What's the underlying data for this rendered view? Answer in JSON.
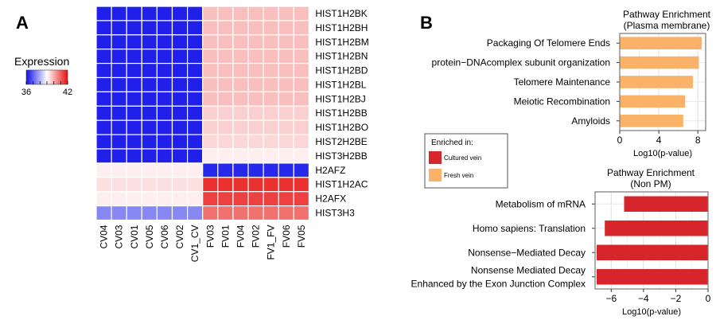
{
  "panels": {
    "a": "A",
    "b": "B"
  },
  "chart_data": [
    {
      "type": "heatmap",
      "rows": [
        "HIST1H2BK",
        "HIST1H2BH",
        "HIST1H2BM",
        "HIST1H2BN",
        "HIST1H2BD",
        "HIST1H2BL",
        "HIST1H2BJ",
        "HIST1H2BB",
        "HIST1H2BO",
        "HIST2H2BE",
        "HIST3H2BB",
        "H2AFZ",
        "HIST1H2AC",
        "H2AFX",
        "HIST3H3"
      ],
      "columns": [
        "CV04",
        "CV03",
        "CV01",
        "CV05",
        "CV06",
        "CV02",
        "CV1_CV",
        "FV03",
        "FV01",
        "FV04",
        "FV02",
        "FV1_FV",
        "FV06",
        "FV05"
      ],
      "values": [
        [
          36.2,
          36.2,
          36.2,
          36.2,
          36.2,
          36.2,
          36.2,
          39.8,
          39.8,
          39.8,
          39.8,
          39.8,
          39.8,
          39.8
        ],
        [
          36.2,
          36.2,
          36.2,
          36.2,
          36.2,
          36.2,
          36.2,
          39.8,
          39.8,
          39.8,
          39.8,
          39.8,
          39.8,
          39.8
        ],
        [
          36.2,
          36.2,
          36.2,
          36.2,
          36.2,
          36.2,
          36.2,
          39.8,
          39.8,
          39.8,
          39.8,
          39.8,
          39.8,
          39.8
        ],
        [
          36.2,
          36.2,
          36.2,
          36.2,
          36.2,
          36.2,
          36.2,
          39.8,
          39.8,
          39.8,
          39.8,
          39.8,
          39.8,
          39.8
        ],
        [
          36.2,
          36.2,
          36.2,
          36.2,
          36.2,
          36.2,
          36.2,
          39.8,
          39.8,
          39.8,
          39.8,
          39.8,
          39.8,
          39.8
        ],
        [
          36.2,
          36.2,
          36.2,
          36.2,
          36.2,
          36.2,
          36.2,
          39.8,
          39.8,
          39.8,
          39.8,
          39.8,
          39.8,
          39.8
        ],
        [
          36.2,
          36.2,
          36.2,
          36.2,
          36.2,
          36.2,
          36.2,
          39.8,
          39.8,
          39.8,
          39.8,
          39.8,
          39.8,
          39.8
        ],
        [
          36.2,
          36.2,
          36.2,
          36.2,
          36.2,
          36.2,
          36.2,
          39.6,
          39.6,
          39.6,
          39.6,
          39.6,
          39.6,
          39.6
        ],
        [
          36.2,
          36.2,
          36.2,
          36.2,
          36.2,
          36.2,
          36.2,
          39.6,
          39.6,
          39.6,
          39.6,
          39.6,
          39.6,
          39.6
        ],
        [
          36.2,
          36.2,
          36.2,
          36.2,
          36.2,
          36.2,
          36.2,
          39.5,
          39.5,
          39.5,
          39.5,
          39.5,
          39.5,
          39.5
        ],
        [
          36.2,
          36.2,
          36.2,
          36.2,
          36.2,
          36.2,
          36.2,
          39.2,
          39.2,
          39.2,
          39.2,
          39.2,
          39.2,
          39.2
        ],
        [
          39.2,
          39.2,
          39.2,
          39.2,
          39.2,
          39.2,
          39.2,
          36.3,
          36.3,
          36.3,
          36.3,
          36.3,
          36.3,
          36.3
        ],
        [
          39.4,
          39.4,
          39.4,
          39.4,
          39.4,
          39.4,
          39.4,
          41.6,
          41.6,
          41.6,
          41.6,
          41.6,
          41.6,
          41.6
        ],
        [
          39.2,
          39.2,
          39.2,
          39.2,
          39.2,
          39.2,
          39.2,
          41.4,
          41.4,
          41.4,
          41.4,
          41.4,
          41.4,
          41.4
        ],
        [
          37.5,
          37.5,
          37.5,
          37.5,
          37.5,
          37.5,
          37.5,
          40.8,
          40.8,
          40.8,
          40.8,
          40.8,
          40.8,
          40.8
        ]
      ],
      "scale": {
        "title": "Expression",
        "min": 36,
        "max": 42,
        "tick_labels": [
          "36",
          "42"
        ],
        "low_color": "#1010e8",
        "mid_color": "#ffffff",
        "high_color": "#e81010"
      }
    },
    {
      "type": "bar",
      "orientation": "horizontal",
      "title": "Pathway Enrichment",
      "subtitle": "(Plasma membrane)",
      "categories": [
        "Packaging Of Telomere Ends",
        "protein−DNAcomplex subunit organization",
        "Telomere Maintenance",
        "Meiotic Recombination",
        "Amyloids"
      ],
      "values": [
        8.4,
        8.1,
        7.5,
        6.7,
        6.5
      ],
      "color": "#f9b268",
      "xlim": [
        0,
        8.8
      ],
      "xticks": [
        0,
        4,
        8
      ],
      "xlabel": "Log10(p-value)"
    },
    {
      "type": "bar",
      "orientation": "horizontal",
      "title": "Pathway Enrichment",
      "subtitle": "(Non PM)",
      "categories": [
        "Metabolism of mRNA",
        "Homo sapiens: Translation",
        "Nonsense−Mediated Decay",
        [
          "Nonsense Mediated Decay",
          "Enhanced by the Exon Junction Complex"
        ]
      ],
      "values": [
        -5.2,
        -6.4,
        -6.9,
        -6.9
      ],
      "color": "#d7262b",
      "xlim": [
        -7.0,
        0
      ],
      "xticks": [
        -6,
        -4,
        -2,
        0
      ],
      "xticks_text": [
        "−6",
        "−4",
        "−2",
        "0"
      ],
      "xlabel": "Log10(p-value)"
    }
  ],
  "legend": {
    "title": "Enriched in:",
    "items": [
      {
        "label": "Cultured vein",
        "color": "#d7262b"
      },
      {
        "label": "Fresh vein",
        "color": "#f9b268"
      }
    ]
  }
}
